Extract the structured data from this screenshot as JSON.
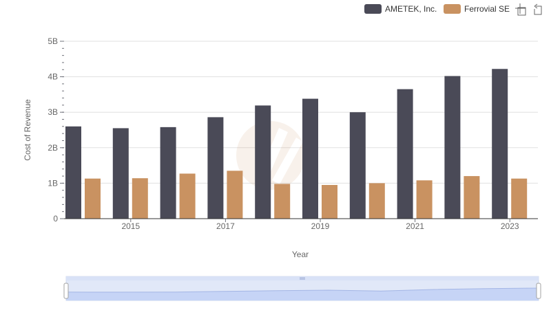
{
  "toolbar": {
    "zoom_icon": "zoom-icon",
    "reset_icon": "reset-icon"
  },
  "chart_data": {
    "type": "bar",
    "categories": [
      "2014",
      "2015",
      "2016",
      "2017",
      "2018",
      "2019",
      "2020",
      "2021",
      "2022",
      "2023"
    ],
    "x_tick_labels": [
      "2015",
      "2017",
      "2019",
      "2021",
      "2023"
    ],
    "series": [
      {
        "name": "AMETEK, Inc.",
        "color": "#4a4a57",
        "values": [
          2.6,
          2.55,
          2.58,
          2.86,
          3.19,
          3.38,
          3.0,
          3.65,
          4.02,
          4.22
        ]
      },
      {
        "name": "Ferrovial SE",
        "color": "#c99261",
        "values": [
          1.13,
          1.14,
          1.27,
          1.35,
          0.98,
          0.95,
          1.0,
          1.08,
          1.2,
          1.13
        ]
      }
    ],
    "unit": "B",
    "xlabel": "Year",
    "ylabel": "Cost of Revenue",
    "ylim": [
      0,
      5
    ],
    "y_ticks": [
      {
        "value": 0,
        "label": "0"
      },
      {
        "value": 1,
        "label": "1B"
      },
      {
        "value": 2,
        "label": "2B"
      },
      {
        "value": 3,
        "label": "3B"
      },
      {
        "value": 4,
        "label": "4B"
      },
      {
        "value": 5,
        "label": "5B"
      }
    ],
    "grid": true,
    "legend_position": "top-right",
    "data_zoom": {
      "start": 0,
      "end": 100
    }
  }
}
